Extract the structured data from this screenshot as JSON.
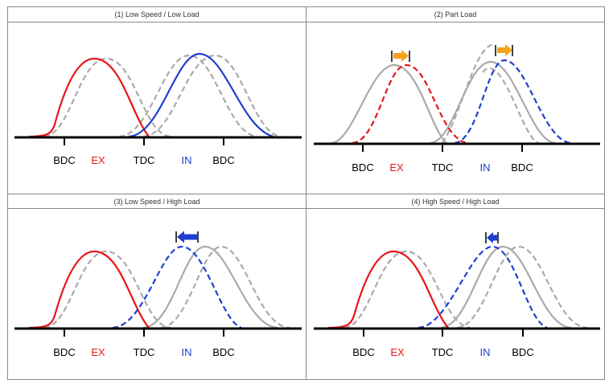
{
  "colors": {
    "exhaust": "#e8151b",
    "intake": "#1f3fd0",
    "reference": "#aaaaaa",
    "axis": "#000000",
    "shift_arrow_retard": "#f5a31a",
    "shift_arrow_advance": "#1f3fd0",
    "frame": "#888888"
  },
  "panels": [
    {
      "title": "(1) Low Speed / Low Load",
      "labels": {
        "bdc1": "BDC",
        "ex": "EX",
        "tdc": "TDC",
        "in": "IN",
        "bdc2": "BDC"
      },
      "exhaust_style": "solid",
      "intake_style": "solid",
      "shift": "none"
    },
    {
      "title": "(2) Part Load",
      "labels": {
        "bdc1": "BDC",
        "ex": "EX",
        "tdc": "TDC",
        "in": "IN",
        "bdc2": "BDC"
      },
      "exhaust_style": "dashed",
      "intake_style": "dashed",
      "shift": "both-retard"
    },
    {
      "title": "(3) Low Speed / High Load",
      "labels": {
        "bdc1": "BDC",
        "ex": "EX",
        "tdc": "TDC",
        "in": "IN",
        "bdc2": "BDC"
      },
      "exhaust_style": "solid",
      "intake_style": "dashed",
      "shift": "intake-advance-large"
    },
    {
      "title": "(4) High Speed / High Load",
      "labels": {
        "bdc1": "BDC",
        "ex": "EX",
        "tdc": "TDC",
        "in": "IN",
        "bdc2": "BDC"
      },
      "exhaust_style": "solid",
      "intake_style": "dashed",
      "shift": "intake-advance-small"
    }
  ]
}
